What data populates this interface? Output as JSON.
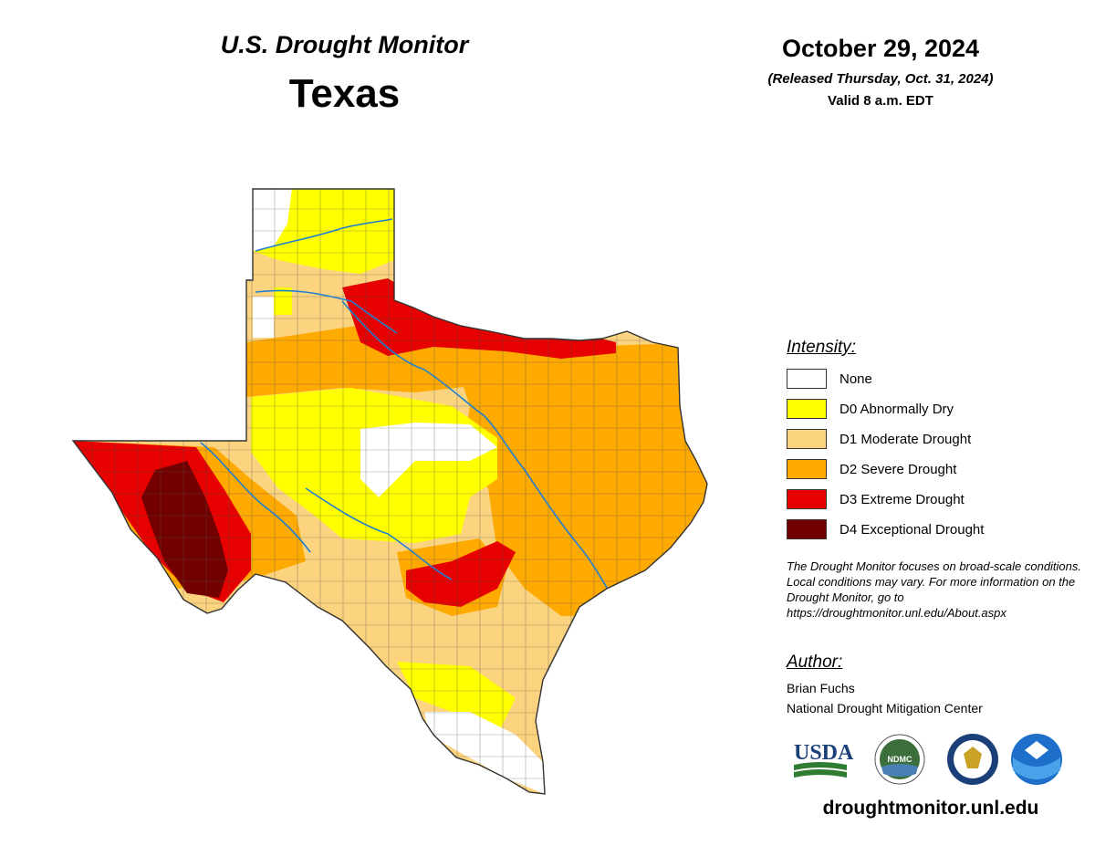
{
  "header": {
    "subtitle": "U.S. Drought Monitor",
    "state": "Texas",
    "date": "October 29, 2024",
    "released": "(Released Thursday, Oct. 31, 2024)",
    "valid": "Valid 8 a.m. EDT"
  },
  "legend": {
    "heading": "Intensity:",
    "items": [
      {
        "label": "None",
        "color": "#ffffff"
      },
      {
        "label": "D0 Abnormally Dry",
        "color": "#ffff00"
      },
      {
        "label": "D1 Moderate Drought",
        "color": "#fcd37f"
      },
      {
        "label": "D2 Severe Drought",
        "color": "#ffaa00"
      },
      {
        "label": "D3 Extreme Drought",
        "color": "#e60000"
      },
      {
        "label": "D4 Exceptional Drought",
        "color": "#730000"
      }
    ]
  },
  "note": "The Drought Monitor focuses on broad-scale conditions. Local conditions may vary. For more information on the Drought Monitor, go to https://droughtmonitor.unl.edu/About.aspx",
  "author": {
    "heading": "Author:",
    "name": "Brian Fuchs",
    "organization": "National Drought Mitigation Center"
  },
  "logos": {
    "usda": "USDA",
    "ndmc": "NDMC"
  },
  "footer": {
    "site": "droughtmonitor.unl.edu"
  },
  "colors": {
    "river": "#1f7fd1",
    "county_lines": "#555555"
  }
}
